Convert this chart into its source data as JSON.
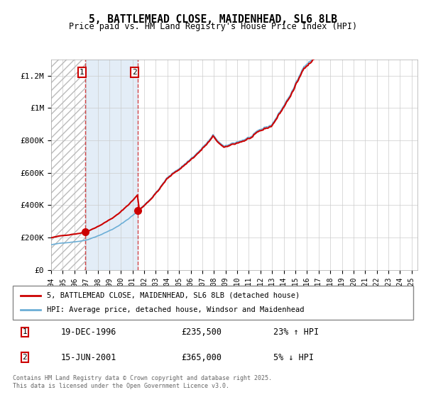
{
  "title": "5, BATTLEMEAD CLOSE, MAIDENHEAD, SL6 8LB",
  "subtitle": "Price paid vs. HM Land Registry's House Price Index (HPI)",
  "legend_line1": "5, BATTLEMEAD CLOSE, MAIDENHEAD, SL6 8LB (detached house)",
  "legend_line2": "HPI: Average price, detached house, Windsor and Maidenhead",
  "footnote": "Contains HM Land Registry data © Crown copyright and database right 2025.\nThis data is licensed under the Open Government Licence v3.0.",
  "sale1_label": "1",
  "sale1_date": "19-DEC-1996",
  "sale1_price": "£235,500",
  "sale1_hpi": "23% ↑ HPI",
  "sale2_label": "2",
  "sale2_date": "15-JUN-2001",
  "sale2_price": "£365,000",
  "sale2_hpi": "5% ↓ HPI",
  "hpi_color": "#6baed6",
  "price_color": "#cc0000",
  "bg_hatch_color": "#d0d0d0",
  "sale1_x": 1996.96,
  "sale2_x": 2001.46,
  "ylim": [
    0,
    1300000
  ],
  "xlim_start": 1994,
  "xlim_end": 2025.5,
  "yticks": [
    0,
    200000,
    400000,
    600000,
    800000,
    1000000,
    1200000
  ],
  "ytick_labels": [
    "£0",
    "£200K",
    "£400K",
    "£600K",
    "£800K",
    "£1M",
    "£1.2M"
  ]
}
